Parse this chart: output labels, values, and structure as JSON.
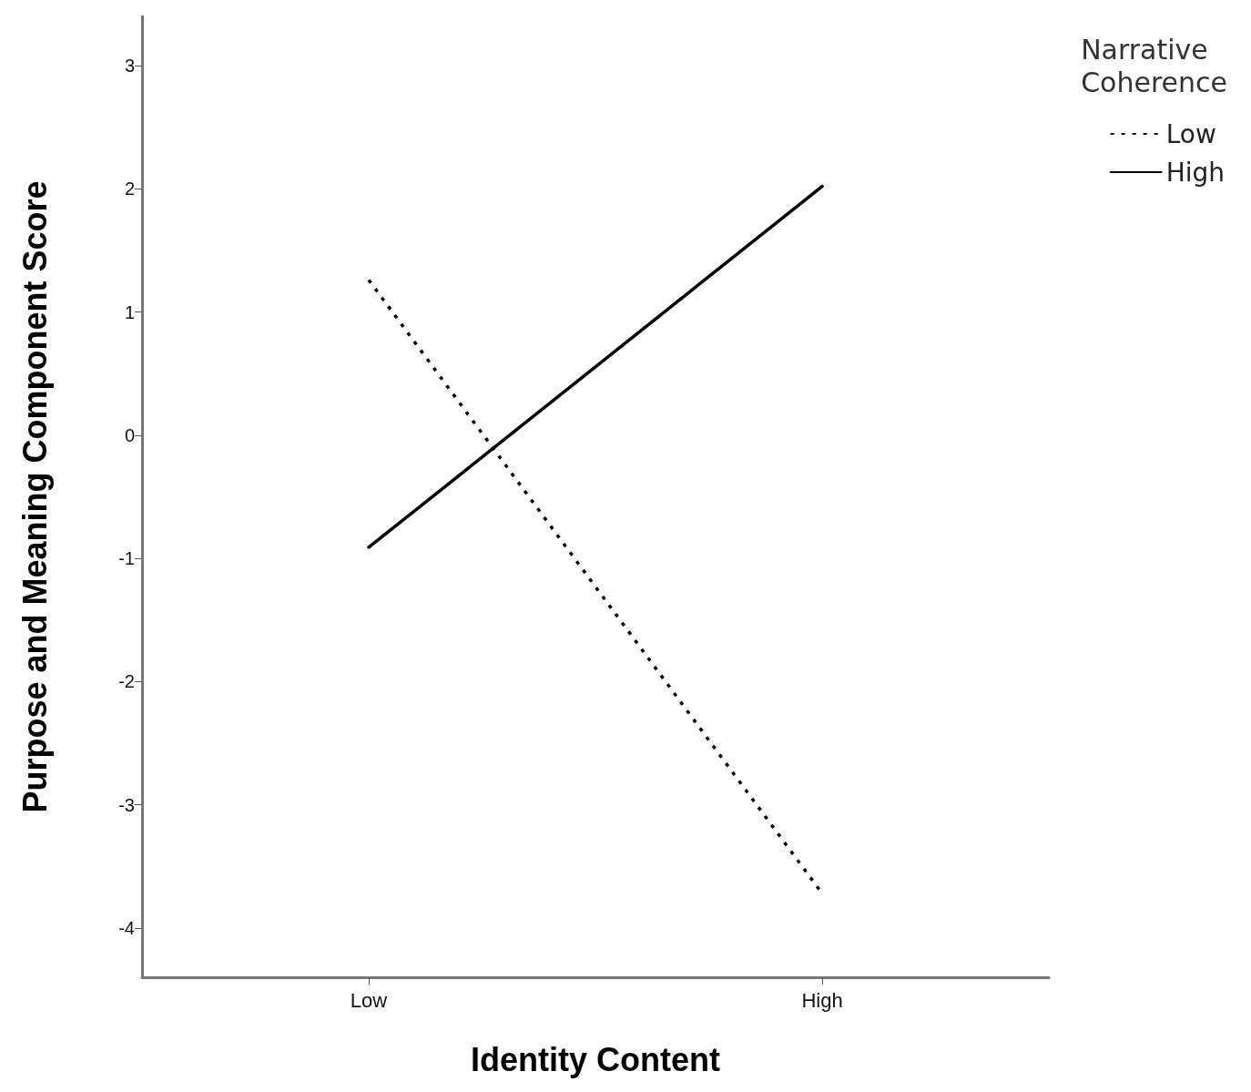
{
  "chart_data": {
    "type": "line",
    "xlabel": "Identity Content",
    "ylabel": "Purpose and Meaning Component Score",
    "legend_title": "Narrative Coherence",
    "categories": [
      "Low",
      "High"
    ],
    "series": [
      {
        "name": "Low",
        "color": "#000000",
        "values": [
          1.26,
          -3.72
        ],
        "line_style": "dotted"
      },
      {
        "name": "High",
        "color": "#000000",
        "values": [
          -0.91,
          2.02
        ],
        "line_style": "solid"
      }
    ],
    "ylim": [
      -4.4,
      3.4
    ],
    "yticks": [
      -4,
      -3,
      -2,
      -1,
      0,
      1,
      2,
      3
    ],
    "grid": false,
    "legend": "top right",
    "marker": "none"
  }
}
